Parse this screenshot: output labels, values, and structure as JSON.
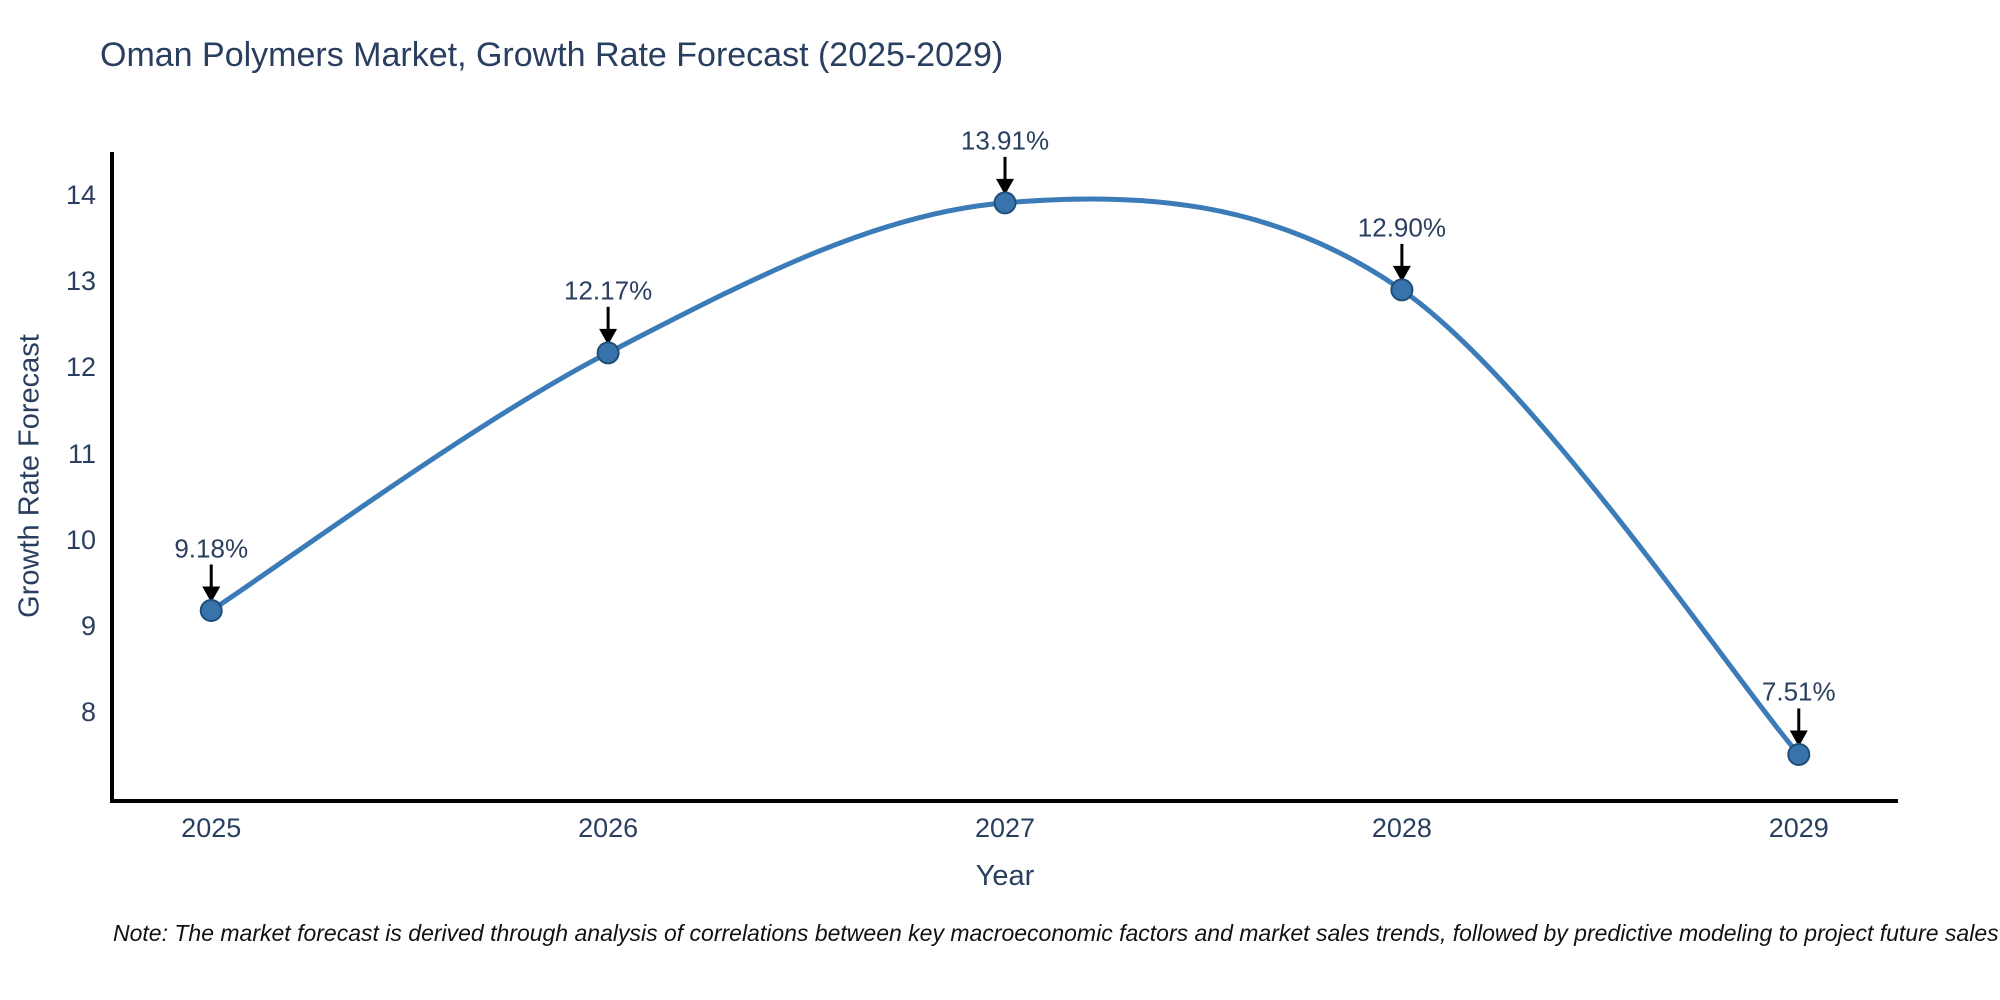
{
  "title": "Oman Polymers Market, Growth Rate Forecast (2025-2029)",
  "note": "Note: The market forecast is derived through analysis of correlations between key macroeconomic factors and market sales trends, followed by predictive modeling to project future sales",
  "colors": {
    "text": "#2a3f5f",
    "axis": "#000000",
    "line": "#3b7cb8",
    "marker_fill": "#3873ab",
    "marker_edge": "#1f4e79",
    "arrow": "#000000",
    "background": "#ffffff"
  },
  "chart_data": {
    "type": "line",
    "curve": "spline",
    "title": "Oman Polymers Market, Growth Rate Forecast (2025-2029)",
    "xlabel": "Year",
    "ylabel": "Growth Rate Forecast",
    "x": [
      2025,
      2026,
      2027,
      2028,
      2029
    ],
    "y": [
      9.18,
      12.17,
      13.91,
      12.9,
      7.51
    ],
    "point_labels": [
      "9.18%",
      "12.17%",
      "13.91%",
      "12.90%",
      "7.51%"
    ],
    "xticks": [
      "2025",
      "2026",
      "2027",
      "2028",
      "2029"
    ],
    "yticks": [
      14,
      13,
      12,
      11,
      10,
      9,
      8
    ],
    "xlim": [
      2024.75,
      2029.25
    ],
    "ylim": [
      6.97,
      14.5
    ],
    "grid": false,
    "legend": false
  }
}
